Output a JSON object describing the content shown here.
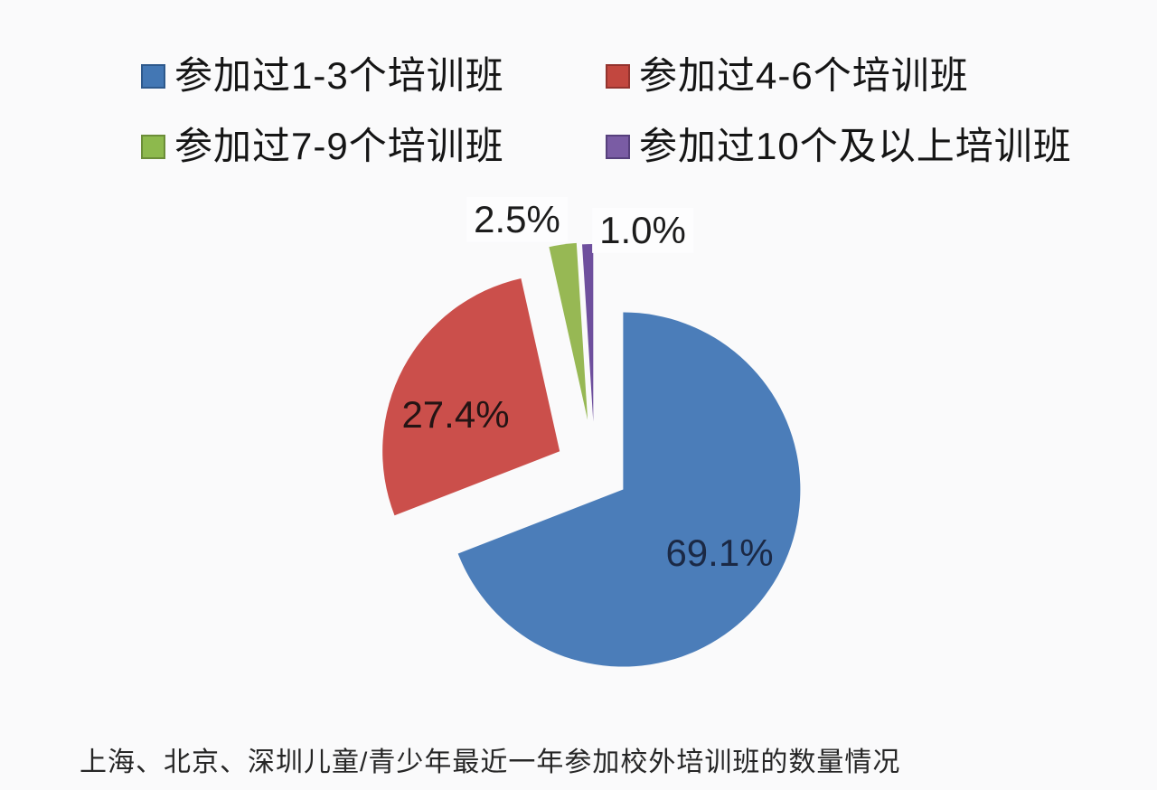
{
  "background": "#fafafb",
  "legend": {
    "position": "top",
    "items": [
      {
        "label": "参加过1-3个培训班",
        "color": "#4377b4",
        "border": "#2e598c"
      },
      {
        "label": "参加过4-6个培训班",
        "color": "#c2473f",
        "border": "#93332e"
      },
      {
        "label": "参加过7-9个培训班",
        "color": "#8db94d",
        "border": "#6b8d38"
      },
      {
        "label": "参加过10个及以上培训班",
        "color": "#7a5ca4",
        "border": "#56407c"
      }
    ]
  },
  "chart_data": {
    "type": "pie",
    "title": "",
    "categories": [
      "参加过1-3个培训班",
      "参加过4-6个培训班",
      "参加过7-9个培训班",
      "参加过10个及以上培训班"
    ],
    "values": [
      69.1,
      27.4,
      2.5,
      1.0
    ],
    "unit": "%",
    "colors": [
      "#4b7db9",
      "#cb4f4b",
      "#97b854",
      "#6e4f9d"
    ],
    "data_labels": [
      "69.1%",
      "27.4%",
      "2.5%",
      "1.0%"
    ],
    "legend_position": "top",
    "exploded": true,
    "start_angle_deg": 0,
    "direction": "clockwise"
  },
  "caption": {
    "text": "上海、北京、深圳儿童/青少年最近一年参加校外培训班的数量情况"
  }
}
